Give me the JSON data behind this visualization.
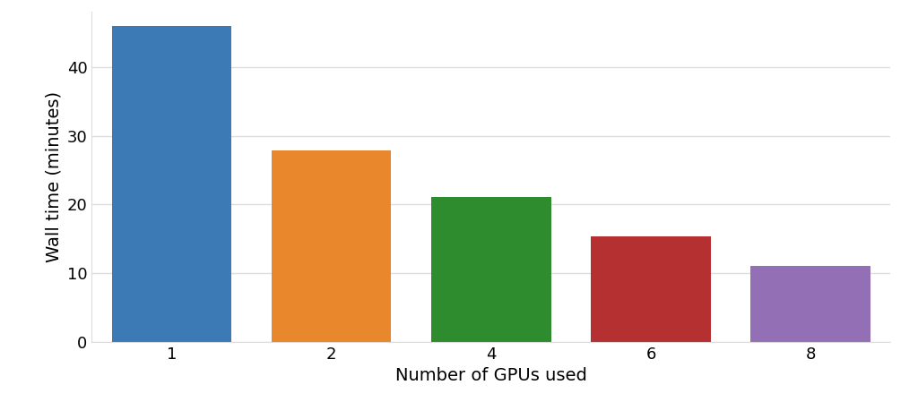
{
  "categories": [
    "1",
    "2",
    "4",
    "6",
    "8"
  ],
  "values": [
    46.0,
    27.8,
    21.1,
    15.3,
    11.1
  ],
  "bar_colors": [
    "#3c7ab5",
    "#e8872b",
    "#2e8b2e",
    "#b53030",
    "#9370b5"
  ],
  "xlabel": "Number of GPUs used",
  "ylabel": "Wall time (minutes)",
  "ylim": [
    0,
    48
  ],
  "yticks": [
    0,
    10,
    20,
    30,
    40
  ],
  "label_fontsize": 14,
  "tick_fontsize": 13,
  "background_color": "#ffffff",
  "grid_color": "#dddddd",
  "bar_width": 0.75
}
